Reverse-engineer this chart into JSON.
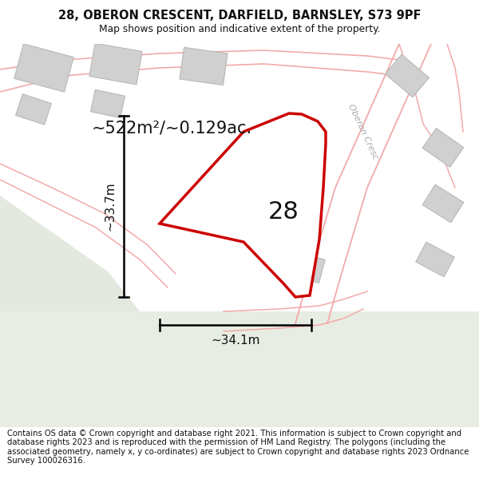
{
  "title_line1": "28, OBERON CRESCENT, DARFIELD, BARNSLEY, S73 9PF",
  "title_line2": "Map shows position and indicative extent of the property.",
  "disclaimer": "Contains OS data © Crown copyright and database right 2021. This information is subject to Crown copyright and database rights 2023 and is reproduced with the permission of HM Land Registry. The polygons (including the associated geometry, namely x, y co-ordinates) are subject to Crown copyright and database rights 2023 Ordnance Survey 100026316.",
  "area_text": "~522m²/~0.129ac.",
  "width_text": "~34.1m",
  "height_text": "~33.7m",
  "property_number": "28",
  "road_color": "#f2aaaa",
  "building_fill": "#d0d0d0",
  "building_edge": "#b8b8b8",
  "property_color": "#cc0000",
  "title_fontsize": 10.5,
  "disclaimer_fontsize": 7.2
}
